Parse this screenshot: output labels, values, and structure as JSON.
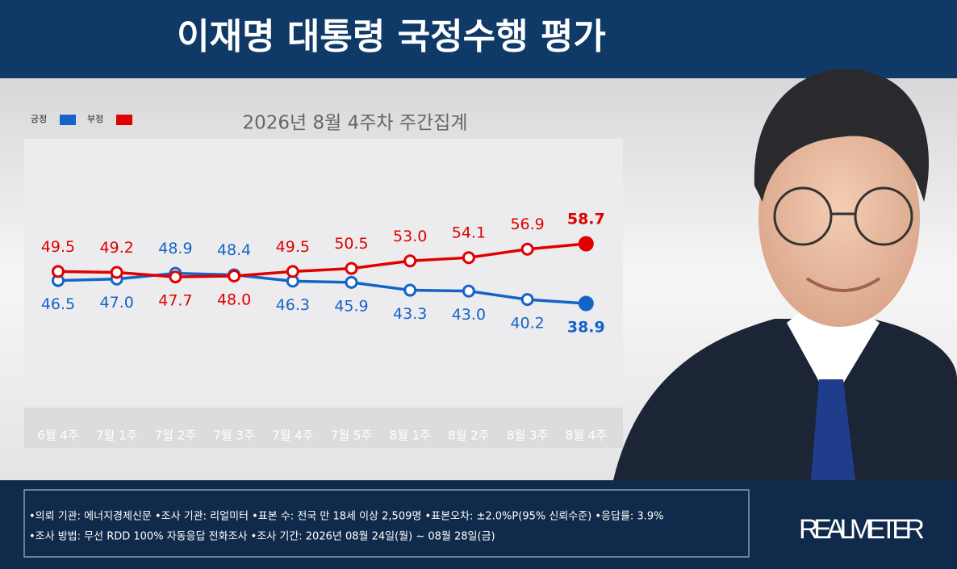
{
  "chart_data": {
    "type": "line",
    "title": "이재명 대통령 국정수행 평가",
    "subtitle": "2026년 8월 4주차 주간집계",
    "categories": [
      "6월 4주",
      "7월 1주",
      "7월 2주",
      "7월 3주",
      "7월 4주",
      "7월 5주",
      "8월 1주",
      "8월 2주",
      "8월 3주",
      "8월 4주"
    ],
    "series": [
      {
        "name": "긍정",
        "color": "#1464c8",
        "values": [
          46.5,
          47.0,
          48.9,
          48.4,
          46.3,
          45.9,
          43.3,
          43.0,
          40.2,
          38.9
        ],
        "value_labels": [
          "46.5",
          "47.0",
          "48.9",
          "48.4",
          "46.3",
          "45.9",
          "43.3",
          "43.0",
          "40.2",
          "38.9"
        ]
      },
      {
        "name": "부정",
        "color": "#e00000",
        "values": [
          49.5,
          49.2,
          47.7,
          48.0,
          49.5,
          50.5,
          53.0,
          54.1,
          56.9,
          58.7
        ],
        "value_labels": [
          "49.5",
          "49.2",
          "47.7",
          "48.0",
          "49.5",
          "50.5",
          "53.0",
          "54.1",
          "56.9",
          "58.7"
        ]
      }
    ],
    "notes": [
      "•의뢰 기관: 에너지경제신문 •조사 기관: 리얼미터 •표본 수: 전국 만 18세 이상 2,509명 •표본오차: ±2.0%P(95% 신뢰수준) •응답률: 3.9%",
      "•조사 방법: 무선 RDD 100% 자동응답 전화조사 •조사 기간: 2026년 08월 24일(월) ~ 08월 28일(금)"
    ],
    "source": "REALMETER"
  }
}
